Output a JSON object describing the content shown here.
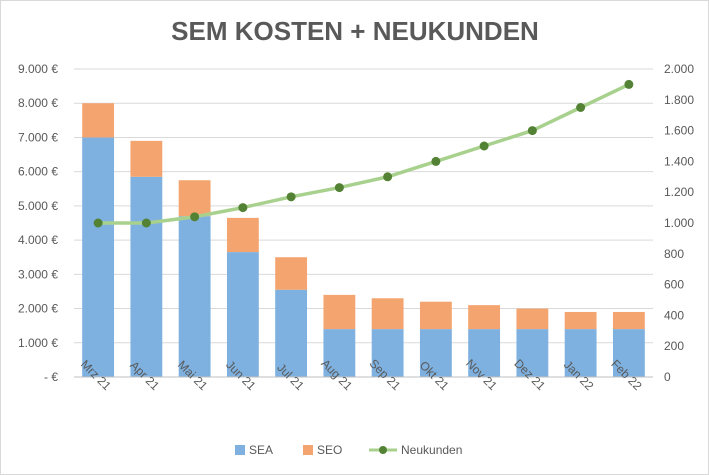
{
  "chart_data": {
    "type": "bar",
    "stacked": true,
    "title": "SEM KOSTEN + NEUKUNDEN",
    "categories": [
      "Mrz 21",
      "Apr 21",
      "Mai 21",
      "Jun 21",
      "Jul 21",
      "Aug 21",
      "Sep 21",
      "Okt 21",
      "Nov 21",
      "Dez 21",
      "Jan 22",
      "Feb 22"
    ],
    "series": [
      {
        "name": "SEA",
        "type": "bar",
        "axis": "left",
        "color": "#7eb1e0",
        "values": [
          7000,
          5850,
          4700,
          3650,
          2550,
          1400,
          1400,
          1400,
          1400,
          1400,
          1400,
          1400
        ]
      },
      {
        "name": "SEO",
        "type": "bar",
        "axis": "left",
        "color": "#f4a46e",
        "values": [
          1000,
          1050,
          1050,
          1000,
          950,
          1000,
          900,
          800,
          700,
          600,
          500,
          500
        ]
      },
      {
        "name": "Neukunden",
        "type": "line",
        "axis": "right",
        "color": "#a9d18e",
        "marker_color": "#548235",
        "values": [
          1000,
          1000,
          1040,
          1100,
          1170,
          1230,
          1300,
          1400,
          1500,
          1600,
          1750,
          1900
        ]
      }
    ],
    "left_axis": {
      "ylim": [
        0,
        9000
      ],
      "ticks": [
        0,
        1000,
        2000,
        3000,
        4000,
        5000,
        6000,
        7000,
        8000,
        9000
      ],
      "tick_labels": [
        "-  €",
        "1.000 €",
        "2.000 €",
        "3.000 €",
        "4.000 €",
        "5.000 €",
        "6.000 €",
        "7.000 €",
        "8.000 €",
        "9.000 €"
      ]
    },
    "right_axis": {
      "ylim": [
        0,
        2000
      ],
      "ticks": [
        0,
        200,
        400,
        600,
        800,
        1000,
        1200,
        1400,
        1600,
        1800,
        2000
      ],
      "tick_labels": [
        "0",
        "200",
        "400",
        "600",
        "800",
        "1.000",
        "1.200",
        "1.400",
        "1.600",
        "1.800",
        "2.000"
      ]
    },
    "grid": true,
    "legend_position": "bottom"
  }
}
